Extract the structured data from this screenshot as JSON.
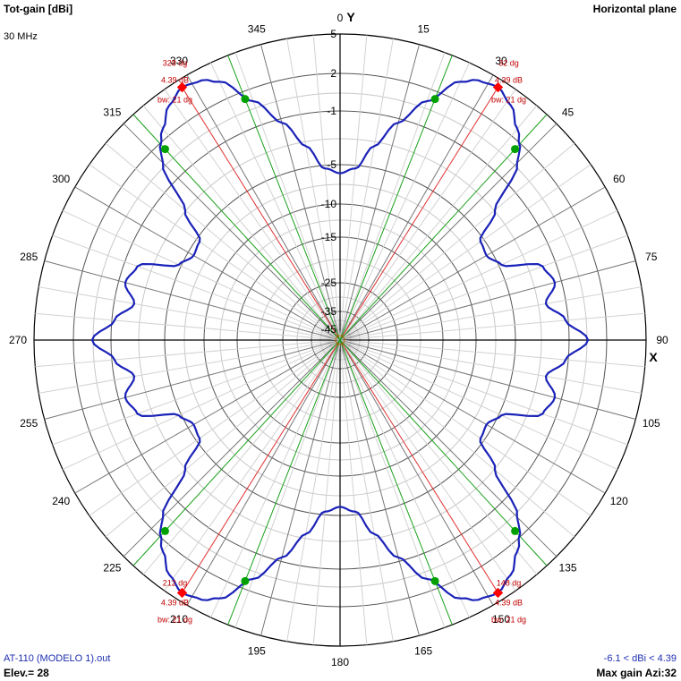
{
  "header": {
    "title_left": "Tot-gain [dBi]",
    "title_right": "Horizontal plane",
    "frequency": "30 MHz"
  },
  "footer": {
    "file": "AT-110 (MODELO 1).out",
    "elevation": "Elev.= 28",
    "gain_range": "-6.1 < dBi < 4.39",
    "max_gain": "Max gain Azi:32"
  },
  "chart_data": {
    "type": "polar-line",
    "title": "Tot-gain [dBi]",
    "subtitle": "Horizontal plane",
    "axis_labels": {
      "y": "Y",
      "x": "X"
    },
    "angle_labels": [
      "0",
      "15",
      "30",
      "45",
      "60",
      "75",
      "90",
      "105",
      "120",
      "135",
      "150",
      "165",
      "180",
      "195",
      "210",
      "225",
      "240",
      "255",
      "270",
      "285",
      "300",
      "315",
      "330",
      "345"
    ],
    "angle_label_values": [
      0,
      15,
      30,
      45,
      60,
      75,
      90,
      105,
      120,
      135,
      150,
      165,
      180,
      195,
      210,
      225,
      240,
      255,
      270,
      285,
      300,
      315,
      330,
      345
    ],
    "radial_labels": [
      "5",
      "2",
      "-1",
      "-5",
      "-10",
      "-15",
      "-25",
      "-35",
      "-45"
    ],
    "radial_label_values": [
      5,
      2,
      -1,
      -5,
      -10,
      -15,
      -25,
      -35,
      -45
    ],
    "series": [
      {
        "color": "#1a22b8",
        "azimuth_deg": [
          0,
          5,
          10,
          15,
          20,
          25,
          28,
          32,
          36,
          40,
          43,
          45,
          50,
          55,
          60,
          65,
          70,
          75,
          80,
          85,
          90
        ],
        "gain_dbi": [
          -6.1,
          -5.4,
          -3.4,
          -1.3,
          1.0,
          3.4,
          4.1,
          4.39,
          3.8,
          2.7,
          1.8,
          0.7,
          -3.0,
          -5.5,
          -5.8,
          -4.8,
          -2.0,
          -1.5,
          -2.5,
          -1.2,
          0.5
        ]
      }
    ],
    "symmetry": "mirrored about the X and Y axes",
    "lobe_markers": [
      {
        "azimuth": 32,
        "azimuth_label": "32 dg",
        "gain_label": "4.39 dB",
        "beamwidth_label": "bw: 21 dg"
      },
      {
        "azimuth": 148,
        "azimuth_label": "148 dg",
        "gain_label": "4.39 dB",
        "beamwidth_label": "bw: 21 dg"
      },
      {
        "azimuth": 212,
        "azimuth_label": "212 dg",
        "gain_label": "4.39 dB",
        "beamwidth_label": "bw: 21 dg"
      },
      {
        "azimuth": 328,
        "azimuth_label": "328 dg",
        "gain_label": "4.39 dB",
        "beamwidth_label": "bw: 21 dg"
      }
    ],
    "beamwidth_edges_deg": [
      21.5,
      42.5,
      137.5,
      158.5,
      201.5,
      222.5,
      317.5,
      338.5
    ],
    "beamwidth_edge_gain_dbi": 1.39,
    "colors": {
      "trace": "#1a22b8",
      "max_marker": "#ff0000",
      "bw_marker": "#00a000",
      "max_line": "#e03030",
      "bw_line": "#1aa01a",
      "annot_text": "#c00000"
    }
  }
}
